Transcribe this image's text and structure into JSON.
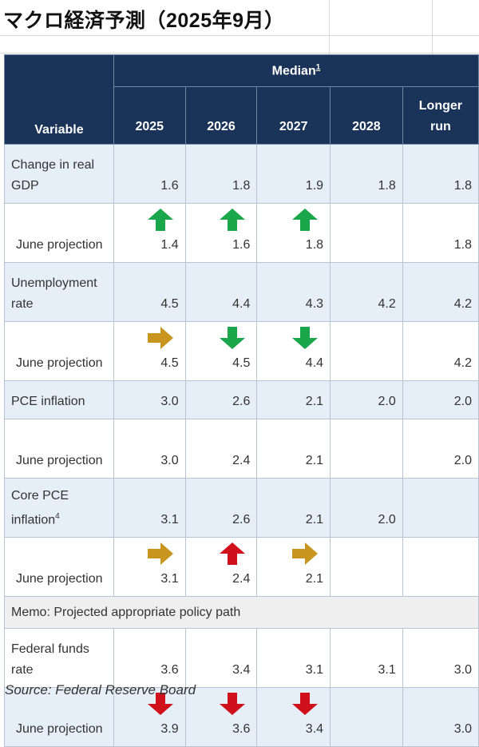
{
  "title": "マクロ経済予測（2025年9月）",
  "header": {
    "variable": "Variable",
    "median": "Median",
    "median_footnote": "1",
    "columns": [
      "2025",
      "2026",
      "2027",
      "2028",
      "Longer run"
    ]
  },
  "rows": [
    {
      "label": "Change in real GDP",
      "footnote": "",
      "style": "blue",
      "values": [
        "1.6",
        "1.8",
        "1.9",
        "1.8",
        "1.8"
      ],
      "arrows": [
        "",
        "",
        "",
        "",
        ""
      ]
    },
    {
      "label": "June projection",
      "footnote": "",
      "style": "white",
      "indent": true,
      "values": [
        "1.4",
        "1.6",
        "1.8",
        "",
        "1.8"
      ],
      "arrows": [
        "up-green",
        "up-green",
        "up-green",
        "",
        ""
      ]
    },
    {
      "label": "Unemployment rate",
      "footnote": "",
      "style": "blue",
      "values": [
        "4.5",
        "4.4",
        "4.3",
        "4.2",
        "4.2"
      ],
      "arrows": [
        "",
        "",
        "",
        "",
        ""
      ]
    },
    {
      "label": "June projection",
      "footnote": "",
      "style": "white",
      "indent": true,
      "values": [
        "4.5",
        "4.5",
        "4.4",
        "",
        "4.2"
      ],
      "arrows": [
        "right-gold",
        "down-green",
        "down-green",
        "",
        ""
      ]
    },
    {
      "label": "PCE inflation",
      "footnote": "",
      "style": "blue",
      "short": true,
      "values": [
        "3.0",
        "2.6",
        "2.1",
        "2.0",
        "2.0"
      ],
      "arrows": [
        "",
        "",
        "",
        "",
        ""
      ]
    },
    {
      "label": "June projection",
      "footnote": "",
      "style": "white",
      "indent": true,
      "values": [
        "3.0",
        "2.4",
        "2.1",
        "",
        "2.0"
      ],
      "arrows": [
        "",
        "",
        "",
        "",
        ""
      ]
    },
    {
      "label": "Core PCE inflation",
      "footnote": "4",
      "style": "blue",
      "values": [
        "3.1",
        "2.6",
        "2.1",
        "2.0",
        ""
      ],
      "arrows": [
        "",
        "",
        "",
        "",
        ""
      ]
    },
    {
      "label": "June projection",
      "footnote": "",
      "style": "white",
      "indent": true,
      "values": [
        "3.1",
        "2.4",
        "2.1",
        "",
        ""
      ],
      "arrows": [
        "right-gold",
        "up-red",
        "right-gold",
        "",
        ""
      ]
    },
    {
      "memo": "Memo: Projected appropriate policy path"
    },
    {
      "label": "Federal funds rate",
      "footnote": "",
      "style": "white",
      "values": [
        "3.6",
        "3.4",
        "3.1",
        "3.1",
        "3.0"
      ],
      "arrows": [
        "",
        "",
        "",
        "",
        ""
      ]
    },
    {
      "label": "June projection",
      "footnote": "",
      "style": "blue",
      "indent": true,
      "values": [
        "3.9",
        "3.6",
        "3.4",
        "",
        "3.0"
      ],
      "arrows": [
        "down-red",
        "down-red",
        "down-red",
        "",
        ""
      ]
    }
  ],
  "colors": {
    "header_bg": "#1a3358",
    "green": "#1aa64a",
    "gold": "#c8961e",
    "red": "#d0101a",
    "row_blue": "#e6eef7"
  },
  "source": "Source: Federal Reserve Board"
}
